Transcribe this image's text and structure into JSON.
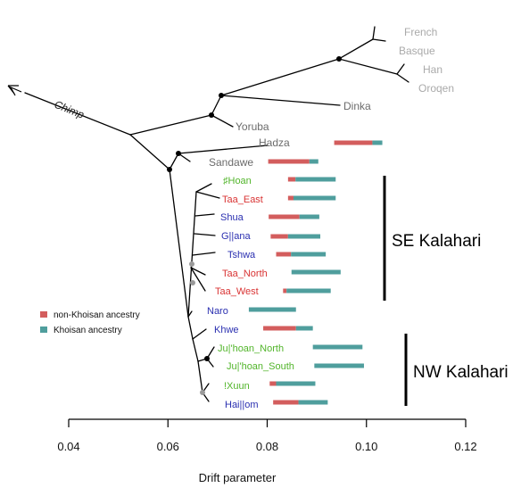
{
  "figure": {
    "chimp_label": "Chimp",
    "groups": [
      {
        "key": "se",
        "label": "SE Kalahari"
      },
      {
        "key": "nw",
        "label": "NW Kalahari"
      }
    ],
    "legend": [
      {
        "label": "non-Khoisan ancestry",
        "color": "#d35d5d"
      },
      {
        "label": "Khoisan ancestry",
        "color": "#4f9e9d"
      }
    ],
    "colors": {
      "outgroup": "#aaaaaa",
      "african": "#6b6b6b",
      "khoisan_green": "#52b52b",
      "khoisan_red": "#d93434",
      "khoisan_blue": "#2a2fb0",
      "non_khoisan": "#d35d5d",
      "khoisan": "#4f9e9d",
      "branch": "#000000"
    },
    "populations": [
      {
        "name": "French",
        "color_key": "outgroup"
      },
      {
        "name": "Basque",
        "color_key": "outgroup"
      },
      {
        "name": "Han",
        "color_key": "outgroup"
      },
      {
        "name": "Oroqen",
        "color_key": "outgroup"
      },
      {
        "name": "Dinka",
        "color_key": "african"
      },
      {
        "name": "Yoruba",
        "color_key": "african"
      },
      {
        "name": "Hadza",
        "color_key": "african",
        "non_khoisan": [
          0.0935,
          0.1012
        ],
        "khoisan": [
          0.1012,
          0.1032
        ]
      },
      {
        "name": "Sandawe",
        "color_key": "african",
        "non_khoisan": [
          0.0802,
          0.0885
        ],
        "khoisan": [
          0.0885,
          0.0903
        ]
      },
      {
        "name": "♯Hoan",
        "color_key": "khoisan_green",
        "non_khoisan": [
          0.0842,
          0.0857
        ],
        "khoisan": [
          0.0857,
          0.0938
        ]
      },
      {
        "name": "Taa_East",
        "color_key": "khoisan_red",
        "non_khoisan": [
          0.0842,
          0.0853
        ],
        "khoisan": [
          0.0853,
          0.0938
        ]
      },
      {
        "name": "Shua",
        "color_key": "khoisan_blue",
        "non_khoisan": [
          0.0803,
          0.0865
        ],
        "khoisan": [
          0.0865,
          0.0905
        ]
      },
      {
        "name": "G||ana",
        "color_key": "khoisan_blue",
        "non_khoisan": [
          0.0807,
          0.0842
        ],
        "khoisan": [
          0.0842,
          0.0907
        ]
      },
      {
        "name": "Tshwa",
        "color_key": "khoisan_blue",
        "non_khoisan": [
          0.0818,
          0.0848
        ],
        "khoisan": [
          0.0848,
          0.0918
        ]
      },
      {
        "name": "Taa_North",
        "color_key": "khoisan_red",
        "non_khoisan": [
          0.0849,
          0.0849
        ],
        "khoisan": [
          0.0849,
          0.0948
        ]
      },
      {
        "name": "Taa_West",
        "color_key": "khoisan_red",
        "non_khoisan": [
          0.0832,
          0.0839
        ],
        "khoisan": [
          0.0839,
          0.0928
        ]
      },
      {
        "name": "Naro",
        "color_key": "khoisan_blue",
        "non_khoisan": [
          0.0763,
          0.0763
        ],
        "khoisan": [
          0.0763,
          0.0858
        ]
      },
      {
        "name": "Khwe",
        "color_key": "khoisan_blue",
        "non_khoisan": [
          0.0792,
          0.0858
        ],
        "khoisan": [
          0.0858,
          0.0892
        ]
      },
      {
        "name": "Ju|'hoan_North",
        "color_key": "khoisan_green",
        "non_khoisan": [
          0.0892,
          0.0892
        ],
        "khoisan": [
          0.0892,
          0.0992
        ]
      },
      {
        "name": "Ju|'hoan_South",
        "color_key": "khoisan_green",
        "non_khoisan": [
          0.0895,
          0.0895
        ],
        "khoisan": [
          0.0895,
          0.0995
        ]
      },
      {
        "name": "!Xuun",
        "color_key": "khoisan_green",
        "non_khoisan": [
          0.0805,
          0.0818
        ],
        "khoisan": [
          0.0818,
          0.0897
        ]
      },
      {
        "name": "Hai||om",
        "color_key": "khoisan_blue",
        "non_khoisan": [
          0.0812,
          0.0863
        ],
        "khoisan": [
          0.0863,
          0.0922
        ]
      }
    ],
    "axis": {
      "label": "Drift parameter",
      "ticks": [
        "0.04",
        "0.06",
        "0.08",
        "0.10",
        "0.12"
      ]
    }
  }
}
